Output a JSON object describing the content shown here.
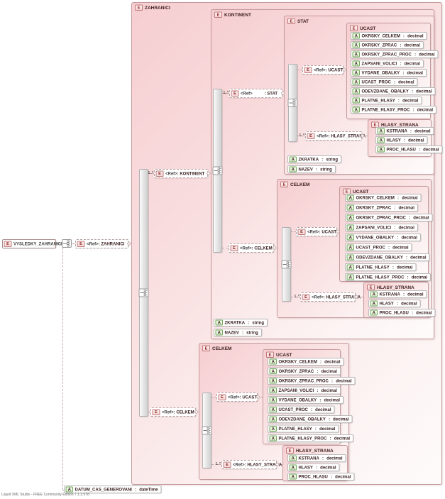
{
  "labels": {
    "ref": "<Ref>",
    "many": "1..*",
    "colon": ": ",
    "sep": " : ",
    "element_icon": "E",
    "attribute_icon": "A"
  },
  "footer": "Liquid XML Studio - FREE Community Edition 7.1.2.978",
  "root": {
    "name": "VYSLEDKY_ZAHRANICI"
  },
  "types": {
    "zahranici": "ZAHRANICI",
    "kontinent": "KONTINENT",
    "stat": "STAT",
    "celkem": "CELKEM",
    "ucast": "UCAST",
    "hlasy_strana": "HLASY_STRANA"
  },
  "ucast": {
    "title": "UCAST",
    "attrs": [
      {
        "name": "OKRSKY_CELKEM",
        "type": "decimal"
      },
      {
        "name": "OKRSKY_ZPRAC",
        "type": "decimal"
      },
      {
        "name": "OKRSKY_ZPRAC_PROC",
        "type": "decimal"
      },
      {
        "name": "ZAPSANI_VOLICI",
        "type": "decimal"
      },
      {
        "name": "VYDANE_OBALKY",
        "type": "decimal"
      },
      {
        "name": "UCAST_PROC",
        "type": "decimal"
      },
      {
        "name": "ODEVZDANE_OBALKY",
        "type": "decimal"
      },
      {
        "name": "PLATNE_HLASY",
        "type": "decimal"
      },
      {
        "name": "PLATNE_HLASY_PROC",
        "type": "decimal"
      }
    ]
  },
  "hlasy_strana": {
    "title": "HLASY_STRANA",
    "attrs": [
      {
        "name": "KSTRANA",
        "type": "decimal"
      },
      {
        "name": "HLASY",
        "type": "decimal"
      },
      {
        "name": "PROC_HLASU",
        "type": "decimal"
      }
    ]
  },
  "stat_attrs": [
    {
      "name": "ZKRATKA",
      "type": "string"
    },
    {
      "name": "NAZEV",
      "type": "string"
    }
  ],
  "kontinent_attrs": [
    {
      "name": "ZKRATKA",
      "type": "string"
    },
    {
      "name": "NAZEV",
      "type": "string"
    }
  ],
  "datum_attrs": [
    {
      "name": "DATUM_CAS_GENEROVANI",
      "type": "dateTime"
    }
  ]
}
